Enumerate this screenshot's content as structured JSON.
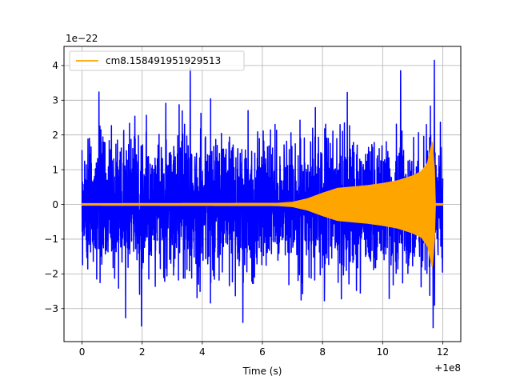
{
  "chart_data": {
    "type": "line",
    "title": "",
    "xlabel": "Time (s)",
    "ylabel": "",
    "x_offset_label": "+1e8",
    "y_scale_label": "1e−22",
    "xlim": [
      -0.6,
      12.6
    ],
    "ylim": [
      -3.95,
      4.55
    ],
    "x_ticks": [
      0,
      2,
      4,
      6,
      8,
      10,
      12
    ],
    "x_tick_labels": [
      "0",
      "2",
      "4",
      "6",
      "8",
      "10",
      "12"
    ],
    "y_ticks": [
      -3,
      -2,
      -1,
      0,
      1,
      2,
      3,
      4
    ],
    "y_tick_labels": [
      "−3",
      "−2",
      "−1",
      "0",
      "1",
      "2",
      "3",
      "4"
    ],
    "grid": true,
    "legend": {
      "placement": "upper-left"
    },
    "series": [
      {
        "name": "",
        "color": "#0000ff",
        "kind": "noise",
        "x_range": [
          0,
          12
        ],
        "typical_amplitude": 1.6,
        "peak_max": 4.15,
        "peak_min": -3.55
      },
      {
        "name": "cm8.158491951929513",
        "color": "#ffa500",
        "kind": "chirp",
        "envelope": {
          "x": [
            0,
            6.5,
            7.0,
            7.5,
            8.0,
            8.5,
            9.0,
            9.5,
            10.0,
            10.5,
            11.0,
            11.3,
            11.5,
            11.65,
            11.72,
            11.75,
            12.0
          ],
          "amplitude": [
            0.02,
            0.03,
            0.06,
            0.16,
            0.32,
            0.46,
            0.5,
            0.54,
            0.6,
            0.68,
            0.82,
            0.95,
            1.2,
            1.8,
            1.0,
            0.02,
            0.02
          ]
        }
      }
    ]
  }
}
